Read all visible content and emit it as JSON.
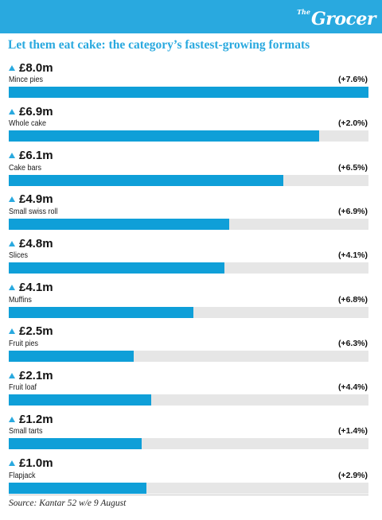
{
  "brand": {
    "logo_small": "The",
    "logo_main": "Grocer",
    "accent_color": "#29a9df",
    "bar_color": "#0f9fd8",
    "track_color": "#e6e6e6"
  },
  "title": "Let them eat cake: the category’s fastest-growing formats",
  "source": "Source: Kantar 52 w/e 9 August",
  "chart_data": {
    "type": "bar",
    "orientation": "horizontal",
    "title": "Let them eat cake: the category’s fastest-growing formats",
    "unit": "£m",
    "xlim": [
      0,
      8.0
    ],
    "grid": false,
    "legend": "none",
    "categories": [
      "Mince pies",
      "Whole cake",
      "Cake bars",
      "Small swiss roll",
      "Slices",
      "Muffins",
      "Fruit pies",
      "Fruit loaf",
      "Small tarts",
      "Flapjack"
    ],
    "values": [
      8.0,
      6.9,
      6.1,
      4.9,
      4.8,
      4.1,
      2.5,
      2.1,
      1.2,
      1.0
    ],
    "value_labels": [
      "£8.0m",
      "£6.9m",
      "£6.1m",
      "£4.9m",
      "£4.8m",
      "£4.1m",
      "£2.5m",
      "£2.1m",
      "£1.2m",
      "£1.0m"
    ],
    "growth_labels": [
      "(+7.6%)",
      "(+2.0%)",
      "(+6.5%)",
      "(+6.9%)",
      "(+4.1%)",
      "(+6.8%)",
      "(+6.3%)",
      "(+4.4%)",
      "(+1.4%)",
      "(+2.9%)"
    ],
    "bar_levels": [
      1.0,
      0.863,
      0.763,
      0.613,
      0.6,
      0.513,
      0.347,
      0.396,
      0.369,
      0.383
    ],
    "marker_icon": "up-triangle-icon"
  }
}
